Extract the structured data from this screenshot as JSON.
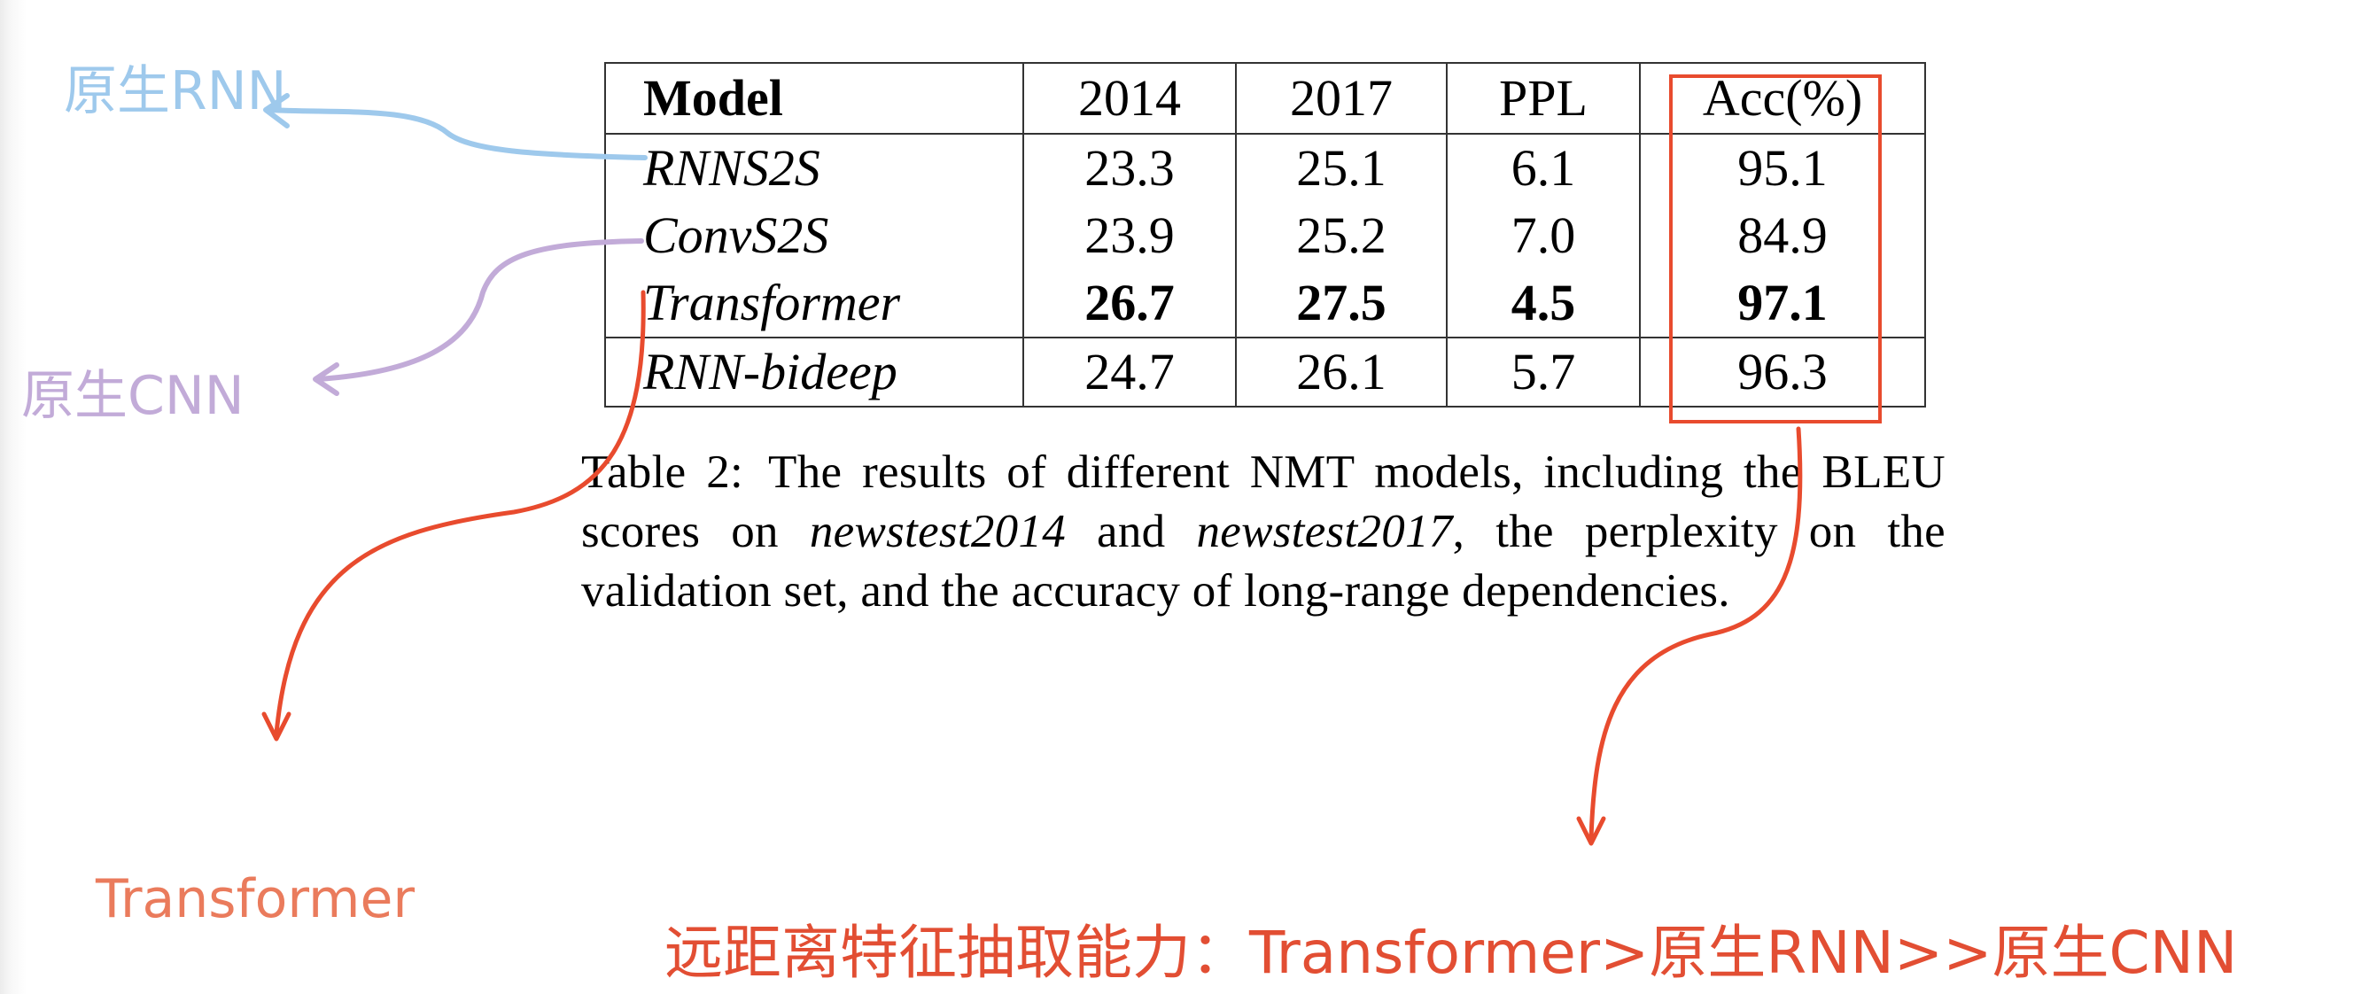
{
  "table": {
    "headers": [
      "Model",
      "2014",
      "2017",
      "PPL",
      "Acc(%)"
    ],
    "rows": [
      {
        "model": "RNNS2S",
        "v2014": "23.3",
        "v2017": "25.1",
        "ppl": "6.1",
        "acc": "95.1"
      },
      {
        "model": "ConvS2S",
        "v2014": "23.9",
        "v2017": "25.2",
        "ppl": "7.0",
        "acc": "84.9"
      },
      {
        "model": "Transformer",
        "v2014": "26.7",
        "v2017": "27.5",
        "ppl": "4.5",
        "acc": "97.1"
      },
      {
        "model": "RNN-bideep",
        "v2014": "24.7",
        "v2017": "26.1",
        "ppl": "5.7",
        "acc": "96.3"
      }
    ]
  },
  "caption": {
    "lead": "Table 2:",
    "part1": "The results of different NMT models, including the BLEU scores on ",
    "italic1": "newstest2014",
    "part2": " and ",
    "italic2": "newstest2017",
    "part3": ", the perplexity on the validation set, and the accuracy of long-range dependencies."
  },
  "annotations": {
    "rnn_label": "原生RNN",
    "cnn_label": "原生CNN",
    "transformer_label": "Transformer",
    "conclusion": "远距离特征抽取能力：Transformer>原生RNN>>原生CNN"
  },
  "colors": {
    "rnn_arrow": "#9ec9ec",
    "cnn_arrow": "#c2abd8",
    "red_accent": "#e84b2e",
    "transformer_label": "#ea7b5c"
  }
}
